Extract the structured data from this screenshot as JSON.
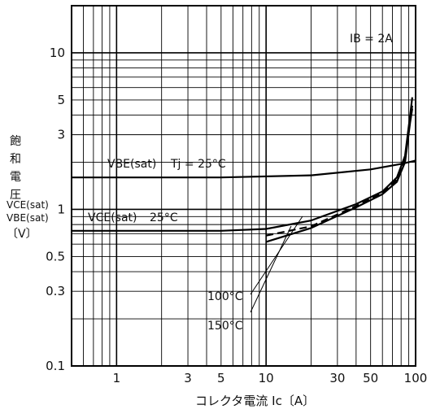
{
  "chart_data": {
    "type": "line",
    "x_scale": "log",
    "y_scale": "log",
    "xlim": [
      0.5,
      100
    ],
    "ylim": [
      0.1,
      20
    ],
    "grid": true,
    "xlabel": "コレクタ電流 Ic〔A〕",
    "ylabel_lines": [
      "飽",
      "和",
      "電",
      "圧"
    ],
    "ylabel_ce": "VCE(sat)",
    "ylabel_be": "VBE(sat)",
    "ylabel_unit": "〔V〕",
    "x_ticks": [
      {
        "value": 1,
        "label": "1"
      },
      {
        "value": 3,
        "label": "3"
      },
      {
        "value": 5,
        "label": "5"
      },
      {
        "value": 10,
        "label": "10"
      },
      {
        "value": 30,
        "label": "30"
      },
      {
        "value": 50,
        "label": "50"
      },
      {
        "value": 100,
        "label": "100"
      }
    ],
    "y_ticks": [
      {
        "value": 0.1,
        "label": "0.1"
      },
      {
        "value": 0.3,
        "label": "0.3"
      },
      {
        "value": 0.5,
        "label": "0.5"
      },
      {
        "value": 1,
        "label": "1"
      },
      {
        "value": 3,
        "label": "3"
      },
      {
        "value": 5,
        "label": "5"
      },
      {
        "value": 10,
        "label": "10"
      }
    ],
    "series": [
      {
        "name": "VBE(sat) Tj=25°C",
        "style": "solid",
        "points": [
          [
            0.5,
            1.6
          ],
          [
            5,
            1.6
          ],
          [
            20,
            1.65
          ],
          [
            50,
            1.8
          ],
          [
            80,
            1.95
          ],
          [
            100,
            2.05
          ]
        ]
      },
      {
        "name": "VCE(sat) 25°C",
        "style": "solid",
        "points": [
          [
            0.5,
            0.73
          ],
          [
            5,
            0.73
          ],
          [
            10,
            0.75
          ],
          [
            20,
            0.85
          ],
          [
            40,
            1.08
          ],
          [
            60,
            1.3
          ],
          [
            75,
            1.6
          ],
          [
            85,
            2.2
          ],
          [
            92,
            4.0
          ],
          [
            95,
            5.2
          ]
        ]
      },
      {
        "name": "100°C",
        "style": "dashed",
        "points": [
          [
            10,
            0.68
          ],
          [
            20,
            0.78
          ],
          [
            40,
            1.05
          ],
          [
            60,
            1.27
          ],
          [
            75,
            1.55
          ],
          [
            85,
            2.1
          ],
          [
            92,
            3.8
          ],
          [
            95,
            4.6
          ]
        ]
      },
      {
        "name": "150°C",
        "style": "solid",
        "points": [
          [
            10,
            0.62
          ],
          [
            20,
            0.76
          ],
          [
            40,
            1.03
          ],
          [
            60,
            1.25
          ],
          [
            75,
            1.5
          ],
          [
            85,
            2.0
          ],
          [
            92,
            3.6
          ],
          [
            95,
            4.4
          ]
        ]
      }
    ],
    "annotations": {
      "ib": "IB = 2A",
      "vbe_main": "VBE(sat)",
      "vbe_tj": "Tj = 25°C",
      "vce_main": "VCE(sat)",
      "vce_temp": "25°C",
      "t100": "100°C",
      "t150": "150°C"
    }
  }
}
